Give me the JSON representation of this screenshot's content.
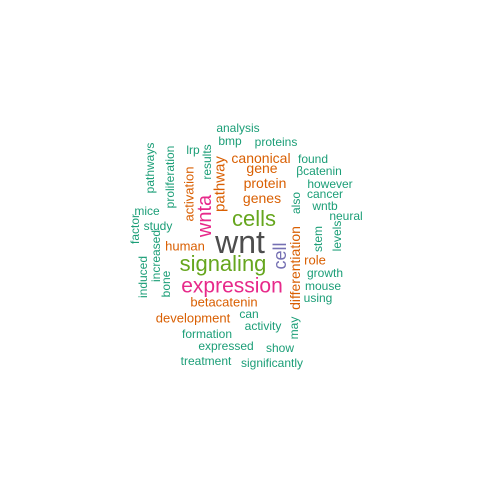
{
  "palette": {
    "dark": "#4d4d4d",
    "green": "#66a61e",
    "magenta": "#e7298a",
    "purple": "#7570b3",
    "orange": "#d95f02",
    "teal": "#1b9e77"
  },
  "words": [
    {
      "text": "wnt",
      "color": "dark"
    },
    {
      "text": "cells",
      "color": "green"
    },
    {
      "text": "signaling",
      "color": "green"
    },
    {
      "text": "expression",
      "color": "magenta"
    },
    {
      "text": "wnta",
      "color": "magenta"
    },
    {
      "text": "cell",
      "color": "purple"
    },
    {
      "text": "pathway",
      "color": "orange"
    },
    {
      "text": "differentiation",
      "color": "orange"
    },
    {
      "text": "canonical",
      "color": "orange"
    },
    {
      "text": "gene",
      "color": "orange"
    },
    {
      "text": "protein",
      "color": "orange"
    },
    {
      "text": "genes",
      "color": "orange"
    },
    {
      "text": "activation",
      "color": "orange"
    },
    {
      "text": "human",
      "color": "orange"
    },
    {
      "text": "role",
      "color": "orange"
    },
    {
      "text": "betacatenin",
      "color": "orange"
    },
    {
      "text": "development",
      "color": "orange"
    },
    {
      "text": "analysis",
      "color": "teal"
    },
    {
      "text": "bmp",
      "color": "teal"
    },
    {
      "text": "proteins",
      "color": "teal"
    },
    {
      "text": "lrp",
      "color": "teal"
    },
    {
      "text": "results",
      "color": "teal"
    },
    {
      "text": "found",
      "color": "teal"
    },
    {
      "text": "βcatenin",
      "color": "teal"
    },
    {
      "text": "however",
      "color": "teal"
    },
    {
      "text": "also",
      "color": "teal"
    },
    {
      "text": "cancer",
      "color": "teal"
    },
    {
      "text": "wntb",
      "color": "teal"
    },
    {
      "text": "neural",
      "color": "teal"
    },
    {
      "text": "pathways",
      "color": "teal"
    },
    {
      "text": "proliferation",
      "color": "teal"
    },
    {
      "text": "mice",
      "color": "teal"
    },
    {
      "text": "study",
      "color": "teal"
    },
    {
      "text": "factor",
      "color": "teal"
    },
    {
      "text": "increased",
      "color": "teal"
    },
    {
      "text": "induced",
      "color": "teal"
    },
    {
      "text": "bone",
      "color": "teal"
    },
    {
      "text": "stem",
      "color": "teal"
    },
    {
      "text": "levels",
      "color": "teal"
    },
    {
      "text": "growth",
      "color": "teal"
    },
    {
      "text": "mouse",
      "color": "teal"
    },
    {
      "text": "using",
      "color": "teal"
    },
    {
      "text": "can",
      "color": "teal"
    },
    {
      "text": "activity",
      "color": "teal"
    },
    {
      "text": "may",
      "color": "teal"
    },
    {
      "text": "formation",
      "color": "teal"
    },
    {
      "text": "expressed",
      "color": "teal"
    },
    {
      "text": "show",
      "color": "teal"
    },
    {
      "text": "treatment",
      "color": "teal"
    },
    {
      "text": "significantly",
      "color": "teal"
    }
  ]
}
